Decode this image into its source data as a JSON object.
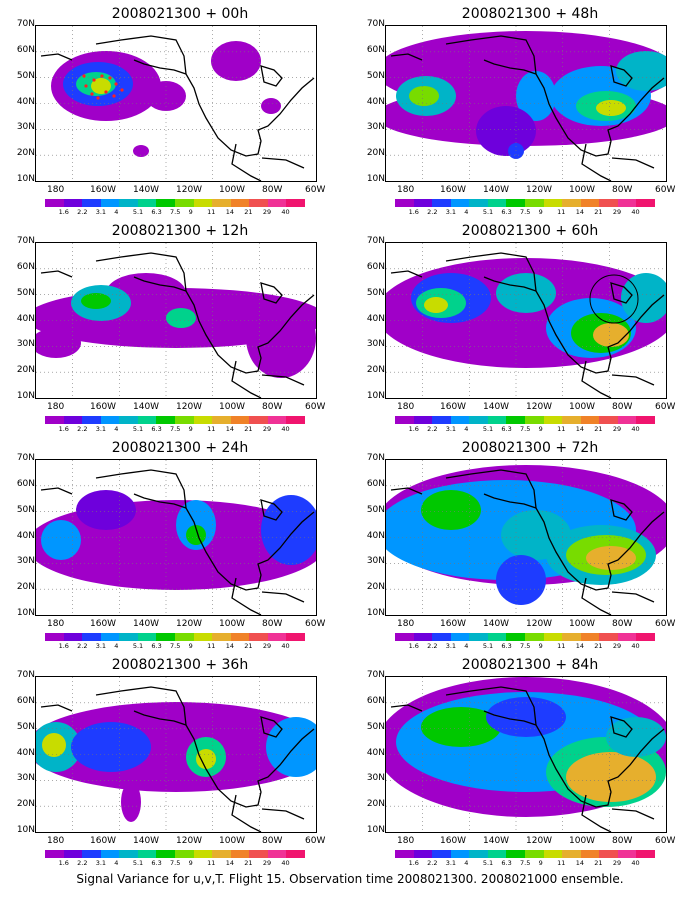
{
  "caption": "Signal Variance for u,v,T. Flight 15. Observation time 2008021300. 2008021000 ensemble.",
  "colorbar": {
    "labels": [
      "1.6",
      "2.2",
      "3.1",
      "4",
      "5.1",
      "6.3",
      "7.5",
      "9",
      "11",
      "14",
      "21",
      "29",
      "40"
    ],
    "colors": [
      "#a000c8",
      "#6e00dc",
      "#1e3cff",
      "#0096ff",
      "#00b4c8",
      "#00d28c",
      "#00c800",
      "#78dc00",
      "#c8dc00",
      "#e6af2d",
      "#f08228",
      "#f05050",
      "#f03296"
    ]
  },
  "axes": {
    "lat_labels": [
      "70N",
      "60N",
      "50N",
      "40N",
      "30N",
      "20N",
      "10N"
    ],
    "lon_labels": [
      "180",
      "160W",
      "140W",
      "120W",
      "100W",
      "80W",
      "60W"
    ]
  },
  "panels": [
    {
      "title": "2008021300 + 00h"
    },
    {
      "title": "2008021300 + 48h"
    },
    {
      "title": "2008021300 + 12h"
    },
    {
      "title": "2008021300 + 60h"
    },
    {
      "title": "2008021300 + 24h"
    },
    {
      "title": "2008021300 + 72h"
    },
    {
      "title": "2008021300 + 36h"
    },
    {
      "title": "2008021300 + 84h"
    }
  ]
}
